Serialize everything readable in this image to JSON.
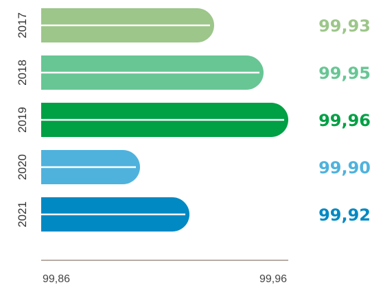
{
  "chart_data": {
    "type": "bar",
    "orientation": "horizontal",
    "categories": [
      "2017",
      "2018",
      "2019",
      "2020",
      "2021"
    ],
    "values": [
      99.93,
      99.95,
      99.96,
      99.9,
      99.92
    ],
    "value_labels": [
      "99,93",
      "99,95",
      "99,96",
      "99,90",
      "99,92"
    ],
    "colors": [
      "#9dc68a",
      "#67c694",
      "#00a045",
      "#4fb2dd",
      "#0089c3"
    ],
    "title": "",
    "xlabel": "",
    "ylabel": "",
    "xlim": [
      99.86,
      99.96
    ],
    "x_tick_labels": [
      "99,86",
      "99,96"
    ],
    "grid": false,
    "axis_color": "#b6aca3"
  }
}
